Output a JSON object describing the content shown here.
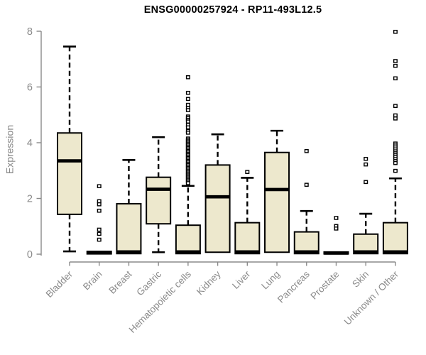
{
  "colors": {
    "box_fill": "#EDE8CD",
    "box_stroke": "#000000",
    "median": "#000000",
    "axis": "#8a8a8a",
    "title": "#000000",
    "background": "#ffffff"
  },
  "chart_data": {
    "type": "boxplot",
    "title": "ENSG00000257924 - RP11-493L12.5",
    "xlabel": "",
    "ylabel": "Expression",
    "ylim": [
      0,
      8
    ],
    "yticks": [
      0,
      2,
      4,
      6,
      8
    ],
    "grid": false,
    "legend": "none",
    "categories": [
      "Bladder",
      "Brain",
      "Breast",
      "Gastric",
      "Hematopoietic cells",
      "Kidney",
      "Liver",
      "Lung",
      "Pancreas",
      "Prostate",
      "Skin",
      "Unknown / Other"
    ],
    "series": [
      {
        "name": "Bladder",
        "whisker_low": 0.1,
        "q1": 1.43,
        "median": 3.35,
        "q3": 4.35,
        "whisker_high": 7.45,
        "outliers": []
      },
      {
        "name": "Brain",
        "whisker_low": 0.0,
        "q1": 0.01,
        "median": 0.05,
        "q3": 0.1,
        "whisker_high": 0.1,
        "outliers": [
          2.44,
          1.9,
          1.79,
          1.56,
          0.88,
          0.73,
          0.52
        ]
      },
      {
        "name": "Breast",
        "whisker_low": 0.0,
        "q1": 0.02,
        "median": 0.08,
        "q3": 1.81,
        "whisker_high": 3.38,
        "outliers": []
      },
      {
        "name": "Gastric",
        "whisker_low": 0.07,
        "q1": 1.09,
        "median": 2.33,
        "q3": 2.76,
        "whisker_high": 4.2,
        "outliers": []
      },
      {
        "name": "Hematopoietic cells",
        "whisker_low": 0.0,
        "q1": 0.02,
        "median": 0.08,
        "q3": 1.04,
        "whisker_high": 2.45,
        "outliers": [
          6.35,
          5.79,
          5.57,
          5.36,
          5.25,
          5.17,
          4.94,
          4.88,
          4.82,
          4.76,
          4.64,
          4.55,
          4.42,
          4.36,
          4.15,
          4.1,
          4.05,
          4.0,
          3.95,
          3.9,
          3.85,
          3.8,
          3.75,
          3.7,
          3.65,
          3.6,
          3.55,
          3.5,
          3.45,
          3.4,
          3.35,
          3.3,
          3.25,
          3.2,
          3.15,
          3.1,
          3.05,
          3.0,
          2.95,
          2.9,
          2.85,
          2.8,
          2.75,
          2.7,
          2.65,
          2.6,
          2.55
        ]
      },
      {
        "name": "Kidney",
        "whisker_low": 0.0,
        "q1": 0.07,
        "median": 2.06,
        "q3": 3.2,
        "whisker_high": 4.3,
        "outliers": []
      },
      {
        "name": "Liver",
        "whisker_low": 0.0,
        "q1": 0.02,
        "median": 0.08,
        "q3": 1.13,
        "whisker_high": 2.74,
        "outliers": [
          2.95
        ]
      },
      {
        "name": "Lung",
        "whisker_low": 0.0,
        "q1": 0.07,
        "median": 2.32,
        "q3": 3.65,
        "whisker_high": 4.43,
        "outliers": []
      },
      {
        "name": "Pancreas",
        "whisker_low": 0.0,
        "q1": 0.02,
        "median": 0.08,
        "q3": 0.8,
        "whisker_high": 1.55,
        "outliers": [
          3.7,
          2.49
        ]
      },
      {
        "name": "Prostate",
        "whisker_low": 0.0,
        "q1": 0.01,
        "median": 0.04,
        "q3": 0.08,
        "whisker_high": 0.08,
        "outliers": [
          1.3,
          1.01,
          0.92
        ]
      },
      {
        "name": "Skin",
        "whisker_low": 0.0,
        "q1": 0.02,
        "median": 0.08,
        "q3": 0.72,
        "whisker_high": 1.45,
        "outliers": [
          3.42,
          3.22,
          2.59
        ]
      },
      {
        "name": "Unknown / Other",
        "whisker_low": 0.0,
        "q1": 0.02,
        "median": 0.08,
        "q3": 1.13,
        "whisker_high": 2.72,
        "outliers": [
          7.98,
          6.93,
          6.76,
          6.31,
          5.32,
          4.98,
          4.87,
          3.97,
          3.9,
          3.83,
          3.76,
          3.69,
          3.62,
          3.55,
          3.48,
          3.41,
          3.34,
          3.27,
          2.99
        ]
      }
    ]
  }
}
